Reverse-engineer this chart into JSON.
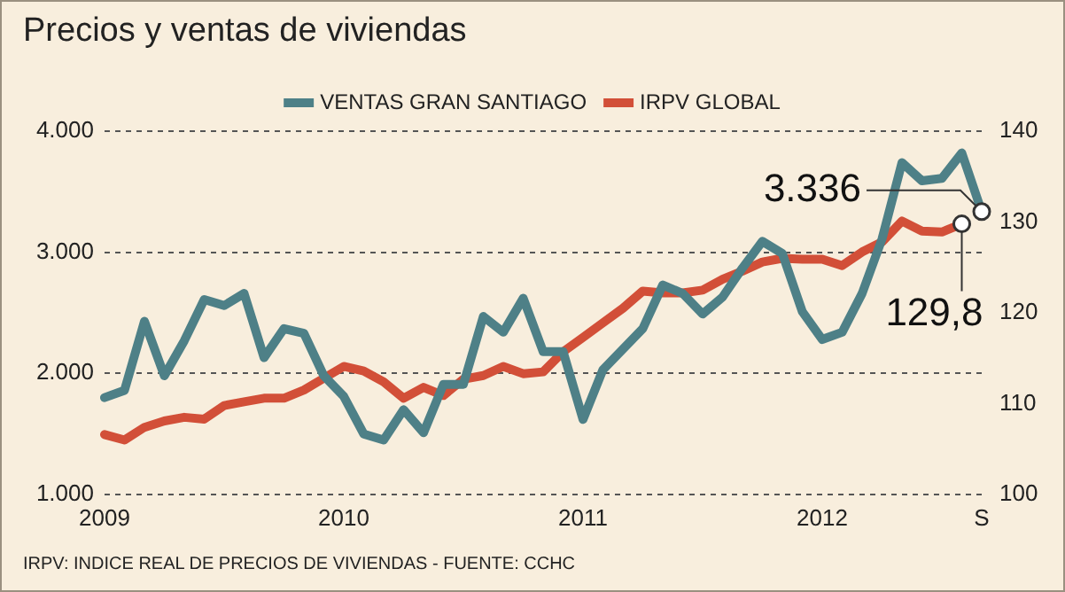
{
  "chart_data": {
    "type": "line",
    "title": "Precios y ventas de viviendas",
    "categories": [
      "2009",
      null,
      null,
      null,
      null,
      null,
      null,
      null,
      null,
      null,
      null,
      null,
      "2010",
      null,
      null,
      null,
      null,
      null,
      null,
      null,
      null,
      null,
      null,
      null,
      "2011",
      null,
      null,
      null,
      null,
      null,
      null,
      null,
      null,
      null,
      null,
      null,
      "2012",
      null,
      null,
      null,
      null,
      null,
      null,
      null,
      "S"
    ],
    "series": [
      {
        "name": "VENTAS GRAN SANTIAGO",
        "color": "#4e8087",
        "values": [
          1800,
          1860,
          2430,
          1980,
          2270,
          2610,
          2560,
          2660,
          2130,
          2370,
          2330,
          1980,
          1810,
          1500,
          1450,
          1700,
          1510,
          1910,
          1910,
          2470,
          2340,
          2620,
          2180,
          2180,
          1620,
          2030,
          2200,
          2370,
          2730,
          2660,
          2490,
          2630,
          2870,
          3090,
          2990,
          2510,
          2280,
          2340,
          2660,
          3110,
          3740,
          3590,
          3610,
          3820,
          3336
        ],
        "value_labels": [
          null,
          null,
          null,
          null,
          null,
          null,
          null,
          null,
          null,
          null,
          null,
          null,
          null,
          null,
          null,
          null,
          null,
          null,
          null,
          null,
          null,
          null,
          null,
          null,
          null,
          null,
          null,
          null,
          null,
          null,
          null,
          null,
          null,
          null,
          null,
          null,
          null,
          null,
          null,
          null,
          null,
          null,
          null,
          null,
          "3.336"
        ]
      },
      {
        "name": "IRPV GLOBAL",
        "color": "#d24f38",
        "axis": "y2",
        "values": [
          106.6,
          106.0,
          107.4,
          108.1,
          108.5,
          108.3,
          109.8,
          110.2,
          110.6,
          110.6,
          111.5,
          112.8,
          114.1,
          113.6,
          112.4,
          110.6,
          111.8,
          110.9,
          112.7,
          113.1,
          114.1,
          113.3,
          113.5,
          115.7,
          117.3,
          118.9,
          120.5,
          122.4,
          122.2,
          122.2,
          122.5,
          123.7,
          124.6,
          125.6,
          126.0,
          125.9,
          125.9,
          125.2,
          126.7,
          127.8,
          130.1,
          129.0,
          128.9,
          129.8,
          null
        ],
        "value_labels": [
          null,
          null,
          null,
          null,
          null,
          null,
          null,
          null,
          null,
          null,
          null,
          null,
          null,
          null,
          null,
          null,
          null,
          null,
          null,
          null,
          null,
          null,
          null,
          null,
          null,
          null,
          null,
          null,
          null,
          null,
          null,
          null,
          null,
          null,
          null,
          null,
          null,
          null,
          null,
          null,
          null,
          null,
          null,
          "129,8",
          null
        ]
      }
    ],
    "ylim": [
      1000,
      4000
    ],
    "yticks": [
      {
        "value": 1000,
        "label": "1.000"
      },
      {
        "value": 2000,
        "label": "2.000"
      },
      {
        "value": 3000,
        "label": "3.000"
      },
      {
        "value": 4000,
        "label": "4.000"
      }
    ],
    "y2lim": [
      100,
      140
    ],
    "y2ticks": [
      100,
      110,
      120,
      130,
      140
    ],
    "grid": "y",
    "legend": "top",
    "marker": "none",
    "line_style": "solid",
    "annotations": [
      "IRPV: INDICE REAL DE PRECIOS DE VIVIENDAS - FUENTE: CCHC"
    ]
  }
}
